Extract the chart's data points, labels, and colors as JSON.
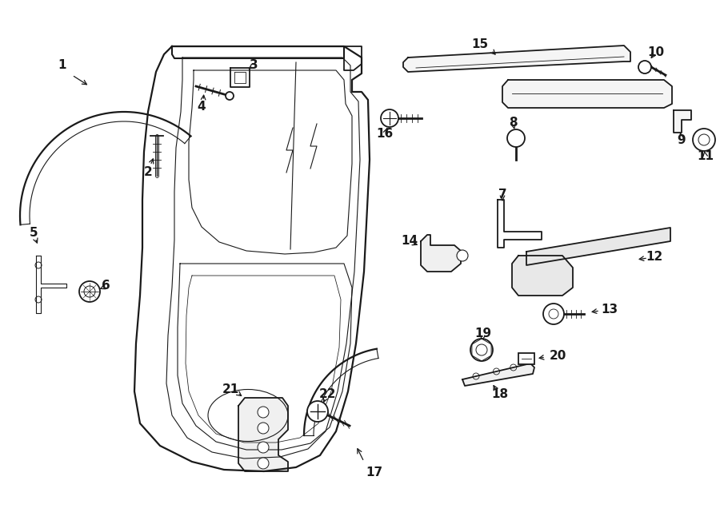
{
  "background_color": "#ffffff",
  "line_color": "#1a1a1a",
  "fig_width": 9.0,
  "fig_height": 6.61,
  "dpi": 100
}
